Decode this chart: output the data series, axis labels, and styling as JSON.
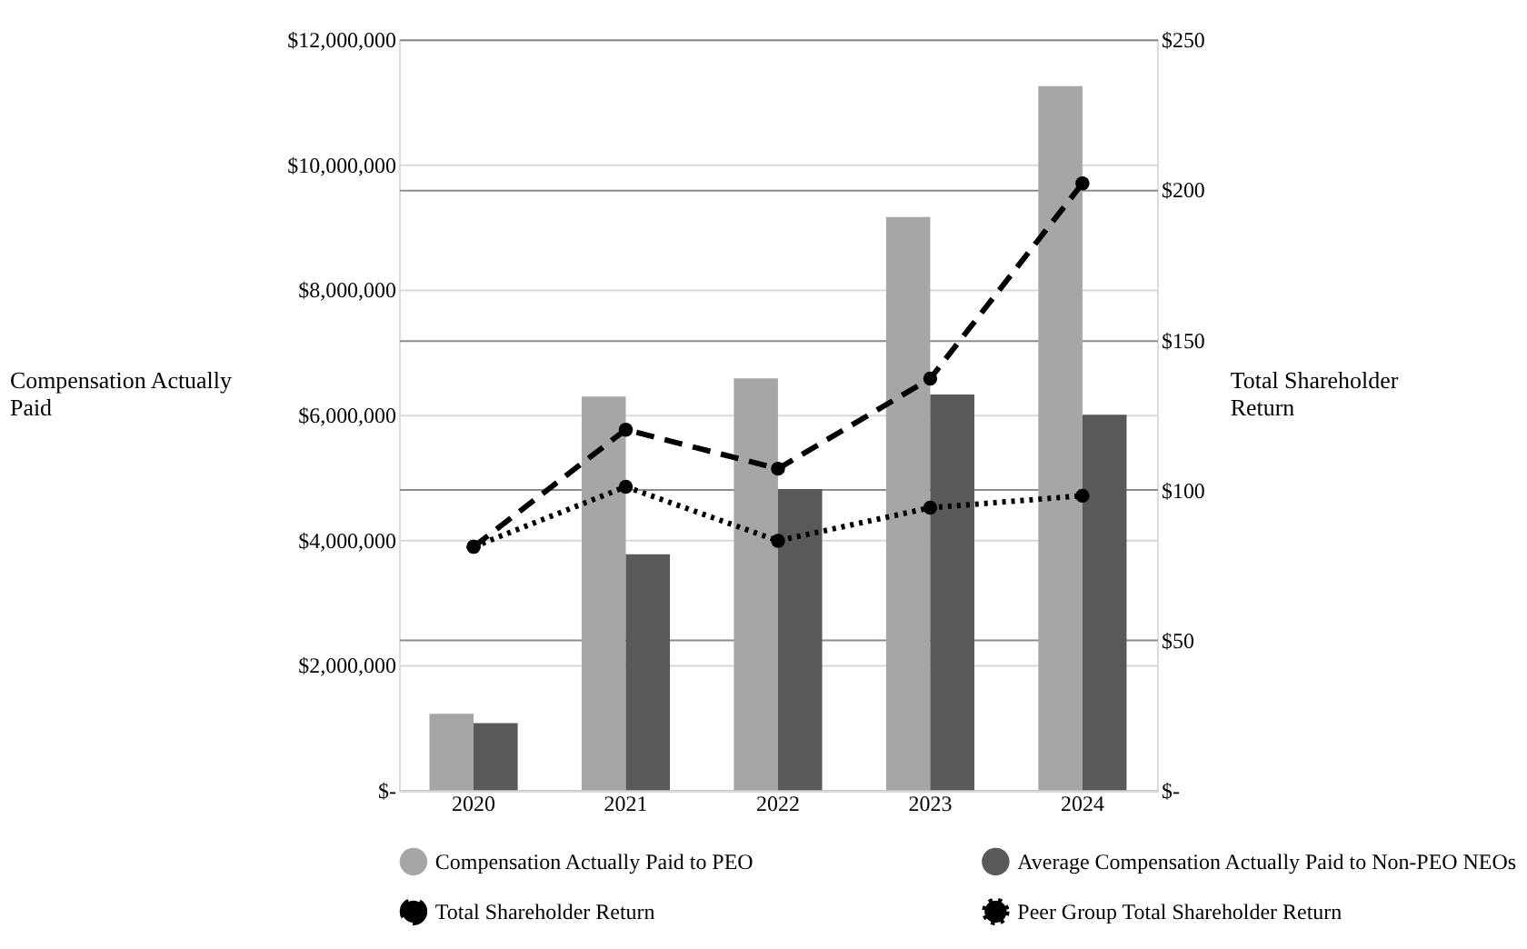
{
  "chart_data": {
    "type": "bar",
    "categories": [
      "2020",
      "2021",
      "2022",
      "2023",
      "2024"
    ],
    "ylabel": "Compensation Actually Paid",
    "y2label": "Total Shareholder Return",
    "ylim": [
      0,
      12000000
    ],
    "yticks": [
      {
        "value": 0,
        "label": "$-"
      },
      {
        "value": 2000000,
        "label": "$2,000,000"
      },
      {
        "value": 4000000,
        "label": "$4,000,000"
      },
      {
        "value": 6000000,
        "label": "$6,000,000"
      },
      {
        "value": 8000000,
        "label": "$8,000,000"
      },
      {
        "value": 10000000,
        "label": "$10,000,000"
      },
      {
        "value": 12000000,
        "label": "$12,000,000"
      }
    ],
    "y2lim": [
      0,
      250
    ],
    "y2ticks": [
      {
        "value": 0,
        "label": "$-"
      },
      {
        "value": 50,
        "label": "$50"
      },
      {
        "value": 100,
        "label": "$100"
      },
      {
        "value": 150,
        "label": "$150"
      },
      {
        "value": 200,
        "label": "$200"
      },
      {
        "value": 250,
        "label": "$250"
      }
    ],
    "series": [
      {
        "name": "Compensation Actually Paid to PEO",
        "color": "#a6a6a6",
        "values": [
          1220000,
          6290000,
          6580000,
          9160000,
          11250000
        ]
      },
      {
        "name": "Average Compensation Actually Paid to Non-PEO NEOs",
        "color": "#595959",
        "values": [
          1070000,
          3770000,
          4810000,
          6320000,
          6000000
        ]
      },
      {
        "name": "Total Shareholder Return",
        "type": "line",
        "axis": "y2",
        "color": "#000000",
        "line_style": "dashed",
        "marker": "circle",
        "values": [
          81,
          120,
          107,
          137,
          202
        ]
      },
      {
        "name": "Peer Group Total Shareholder Return",
        "type": "line",
        "axis": "y2",
        "color": "#000000",
        "line_style": "dotted",
        "marker": "circle",
        "values": [
          81,
          101,
          83,
          94,
          98
        ]
      }
    ],
    "grid": "y",
    "legend": "bottom"
  }
}
